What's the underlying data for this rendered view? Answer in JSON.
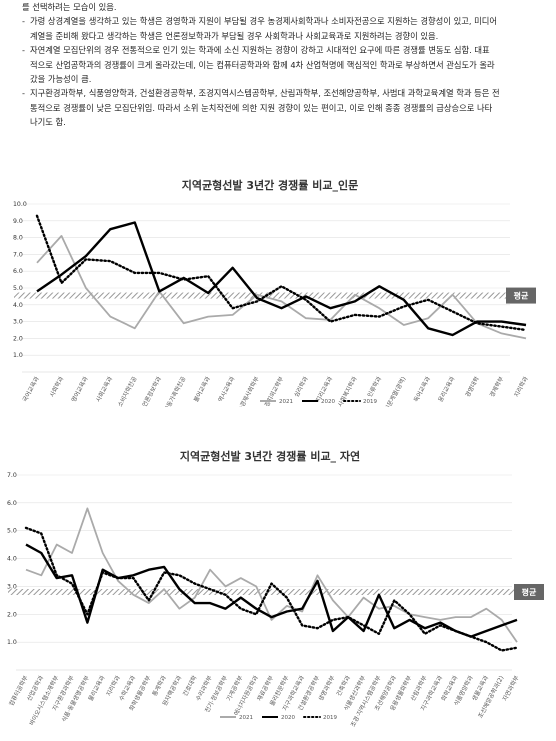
{
  "text_block": {
    "lines": [
      {
        "bullet": false,
        "text": "를 선택하려는 모습이 있음."
      },
      {
        "bullet": true,
        "text": "가령 상경계열을 생각하고 있는 학생은 경영학과 지원이 부담될 경우 농경제사회학과나 소비자전공으로 지원하는 경향성이 있고, 미디어"
      },
      {
        "bullet": false,
        "text": "계열을 준비해 왔다고 생각하는 학생은 언론정보학과가 부담될 경우 사회학과나 사회교육과로 지원하려는 경향이 있음."
      },
      {
        "bullet": true,
        "text": "자연계열 모집단위의 경우 전통적으로 인기 있는 학과에 소신 지원하는 경향이 강하고 시대적인 요구에 따른 경쟁률 변동도 심함. 대표"
      },
      {
        "bullet": false,
        "text": "적으로 산업공학과의 경쟁률이 크게 올라갔는데, 이는 컴퓨터공학과와 함께 4차 산업혁명에 핵심적인 학과로 부상하면서 관심도가 올라"
      },
      {
        "bullet": false,
        "text": "갔을 가능성이 큼."
      },
      {
        "bullet": true,
        "text": "지구환경과학부, 식품영양학과, 건설환경공학부, 조경지역시스템공학부, 산림과학부, 조선해양공학부, 사범대 과학교육계열 학과 등은 전"
      },
      {
        "bullet": false,
        "text": "통적으로 경쟁률이 낮은 모집단위임. 따라서 소위 눈치작전에 의한 지원 경향이 있는 편이고, 이로 인해 종종 경쟁률의 급상승으로 나타"
      },
      {
        "bullet": false,
        "text": "나기도 함."
      }
    ]
  },
  "chart_data": [
    {
      "type": "line",
      "title": "지역균형선발 3년간 경쟁률 비교_인문",
      "ylim": [
        0,
        10
      ],
      "yticks": [
        "1.0",
        "2.0",
        "3.0",
        "4.0",
        "5.0",
        "6.0",
        "7.0",
        "8.0",
        "9.0",
        "10.0"
      ],
      "grid": true,
      "legend_position": "bottom",
      "average_label": "평균",
      "average_value": 4.55,
      "categories": [
        "국어교육과",
        "사회학과",
        "영어교육과",
        "사회교육과",
        "소비자학전공",
        "언론정보학과",
        "아동가족학전공",
        "불어교육과",
        "역사교육과",
        "농경제사회학부",
        "정치외교학부",
        "심리학과",
        "지리교육과",
        "사회복지학과",
        "인류학과",
        "인문계열(광역)",
        "독어교육과",
        "윤리교육과",
        "경영대학",
        "경제학부",
        "지리학과"
      ],
      "series": [
        {
          "name": "2021",
          "color": "#aaaaaa",
          "style": "solid",
          "values": [
            6.5,
            8.1,
            5.0,
            3.3,
            2.6,
            4.8,
            2.9,
            3.3,
            3.4,
            4.6,
            4.2,
            3.2,
            3.1,
            4.6,
            3.8,
            2.8,
            3.2,
            4.6,
            2.9,
            2.3,
            2.0
          ]
        },
        {
          "name": "2020",
          "color": "#000000",
          "style": "solid",
          "values": [
            4.8,
            5.8,
            6.9,
            8.5,
            8.9,
            4.8,
            5.6,
            4.7,
            6.2,
            4.4,
            3.8,
            4.5,
            3.8,
            4.2,
            5.1,
            4.3,
            2.6,
            2.2,
            3.0,
            3.0,
            2.8
          ]
        },
        {
          "name": "2019",
          "color": "#000000",
          "style": "dotted",
          "values": [
            9.3,
            5.3,
            6.7,
            6.6,
            5.9,
            5.9,
            5.5,
            5.7,
            3.8,
            4.2,
            5.1,
            4.3,
            3.0,
            3.4,
            3.3,
            3.9,
            4.3,
            3.6,
            2.9,
            2.7,
            2.5
          ]
        }
      ]
    },
    {
      "type": "line",
      "title": "지역균형선발 3년간 경쟁률 비교_ 자연",
      "ylim": [
        0,
        7
      ],
      "yticks": [
        "1.0",
        "2.0",
        "3.0",
        "4.0",
        "5.0",
        "6.0",
        "7.0"
      ],
      "grid": true,
      "legend_position": "bottom",
      "average_label": "평균",
      "average_value": 2.8,
      "categories": [
        "컴퓨터공학부",
        "산업공학과",
        "바이오시스템소재학부",
        "지구환경과학부",
        "식품·동물생명공학부",
        "물리교육과",
        "지리학과",
        "수학교육과",
        "화학생물공학부",
        "통계학과",
        "원자핵공학과",
        "간호대학",
        "수리과학부",
        "전기·정보공학부",
        "기계공학부",
        "에너지자원공학과",
        "재료공학부",
        "물리천문학부",
        "지구과학교육과",
        "건설환경공학부",
        "생명과학부",
        "건축학과",
        "식물생산과학부",
        "조경·지역시스템공학부",
        "조선해양공학과",
        "응용생물화학부",
        "산림과학부",
        "지구과학교육과",
        "화학교육과",
        "식품영양학과",
        "생물교육과",
        "조선해양공학과(2)",
        "자연과학부"
      ],
      "series": [
        {
          "name": "2021",
          "color": "#aaaaaa",
          "style": "solid",
          "values": [
            3.6,
            3.4,
            4.5,
            4.2,
            5.8,
            4.2,
            3.2,
            2.7,
            2.4,
            2.9,
            2.2,
            2.6,
            3.6,
            3.0,
            3.3,
            3.0,
            1.8,
            2.3,
            2.1,
            3.4,
            2.5,
            1.9,
            2.6,
            2.2,
            2.3,
            2.0,
            1.9,
            1.8,
            1.9,
            1.9,
            2.2,
            1.8,
            1.0
          ]
        },
        {
          "name": "2020",
          "color": "#000000",
          "style": "solid",
          "values": [
            4.5,
            4.2,
            3.3,
            3.4,
            1.7,
            3.6,
            3.3,
            3.4,
            3.6,
            3.7,
            2.9,
            2.4,
            2.4,
            2.2,
            2.6,
            2.2,
            1.9,
            2.1,
            2.2,
            3.2,
            1.4,
            1.9,
            1.4,
            2.7,
            1.5,
            1.8,
            1.5,
            1.7,
            1.4,
            1.2,
            1.4,
            1.6,
            1.8
          ]
        },
        {
          "name": "2019",
          "color": "#000000",
          "style": "dotted",
          "values": [
            5.1,
            4.9,
            3.4,
            3.1,
            2.0,
            3.5,
            3.3,
            3.3,
            2.5,
            3.5,
            3.4,
            3.1,
            2.9,
            2.7,
            2.2,
            2.0,
            3.1,
            2.6,
            1.6,
            1.5,
            1.8,
            1.9,
            1.6,
            1.3,
            2.5,
            2.0,
            1.3,
            1.6,
            1.4,
            1.2,
            1.0,
            0.7,
            0.8
          ]
        }
      ]
    }
  ]
}
